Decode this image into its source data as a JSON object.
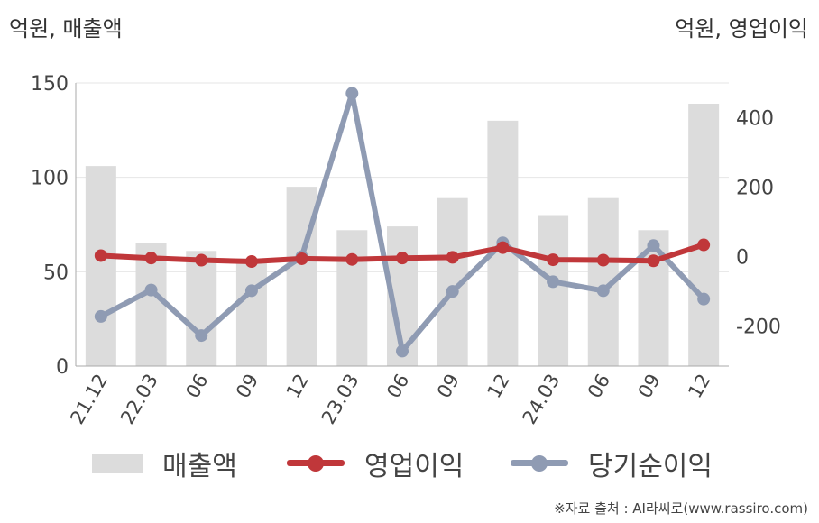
{
  "units": {
    "left": "억원, 매출액",
    "right": "억원, 영업이익"
  },
  "source": "※자료 출처 : AI라씨로(www.rassiro.com)",
  "legend": {
    "sales": "매출액",
    "operating": "영업이익",
    "net": "당기순이익"
  },
  "colors": {
    "sales": "#dcdcdc",
    "operating": "#c0373a",
    "net": "#8f9bb3",
    "grid": "#e6e6e6",
    "axis": "#aaaaaa"
  },
  "chart_data": {
    "type": "bar+line",
    "categories": [
      "21.12",
      "22.03",
      "06",
      "09",
      "12",
      "23.03",
      "06",
      "09",
      "12",
      "24.03",
      "06",
      "09",
      "12"
    ],
    "series": [
      {
        "name": "매출액",
        "type": "bar",
        "axis": "left",
        "values": [
          106,
          65,
          61,
          57,
          95,
          72,
          74,
          89,
          130,
          80,
          89,
          72,
          139
        ]
      },
      {
        "name": "영업이익",
        "type": "line",
        "axis": "right",
        "values": [
          3,
          -4,
          -10,
          -14,
          -6,
          -8,
          -4,
          -2,
          26,
          -9,
          -10,
          -12,
          34
        ]
      },
      {
        "name": "당기순이익",
        "type": "line",
        "axis": "right",
        "values": [
          -172,
          -96,
          -227,
          -98,
          0,
          470,
          -272,
          -100,
          40,
          -72,
          -98,
          32,
          -122
        ]
      }
    ],
    "y_left": {
      "ticks": [
        0,
        50,
        100,
        150
      ],
      "ylim": [
        0,
        150
      ]
    },
    "y_right": {
      "ticks": [
        -200,
        0,
        200,
        400
      ],
      "ylim": [
        -315,
        500
      ]
    },
    "grid": true,
    "legend_position": "bottom"
  }
}
